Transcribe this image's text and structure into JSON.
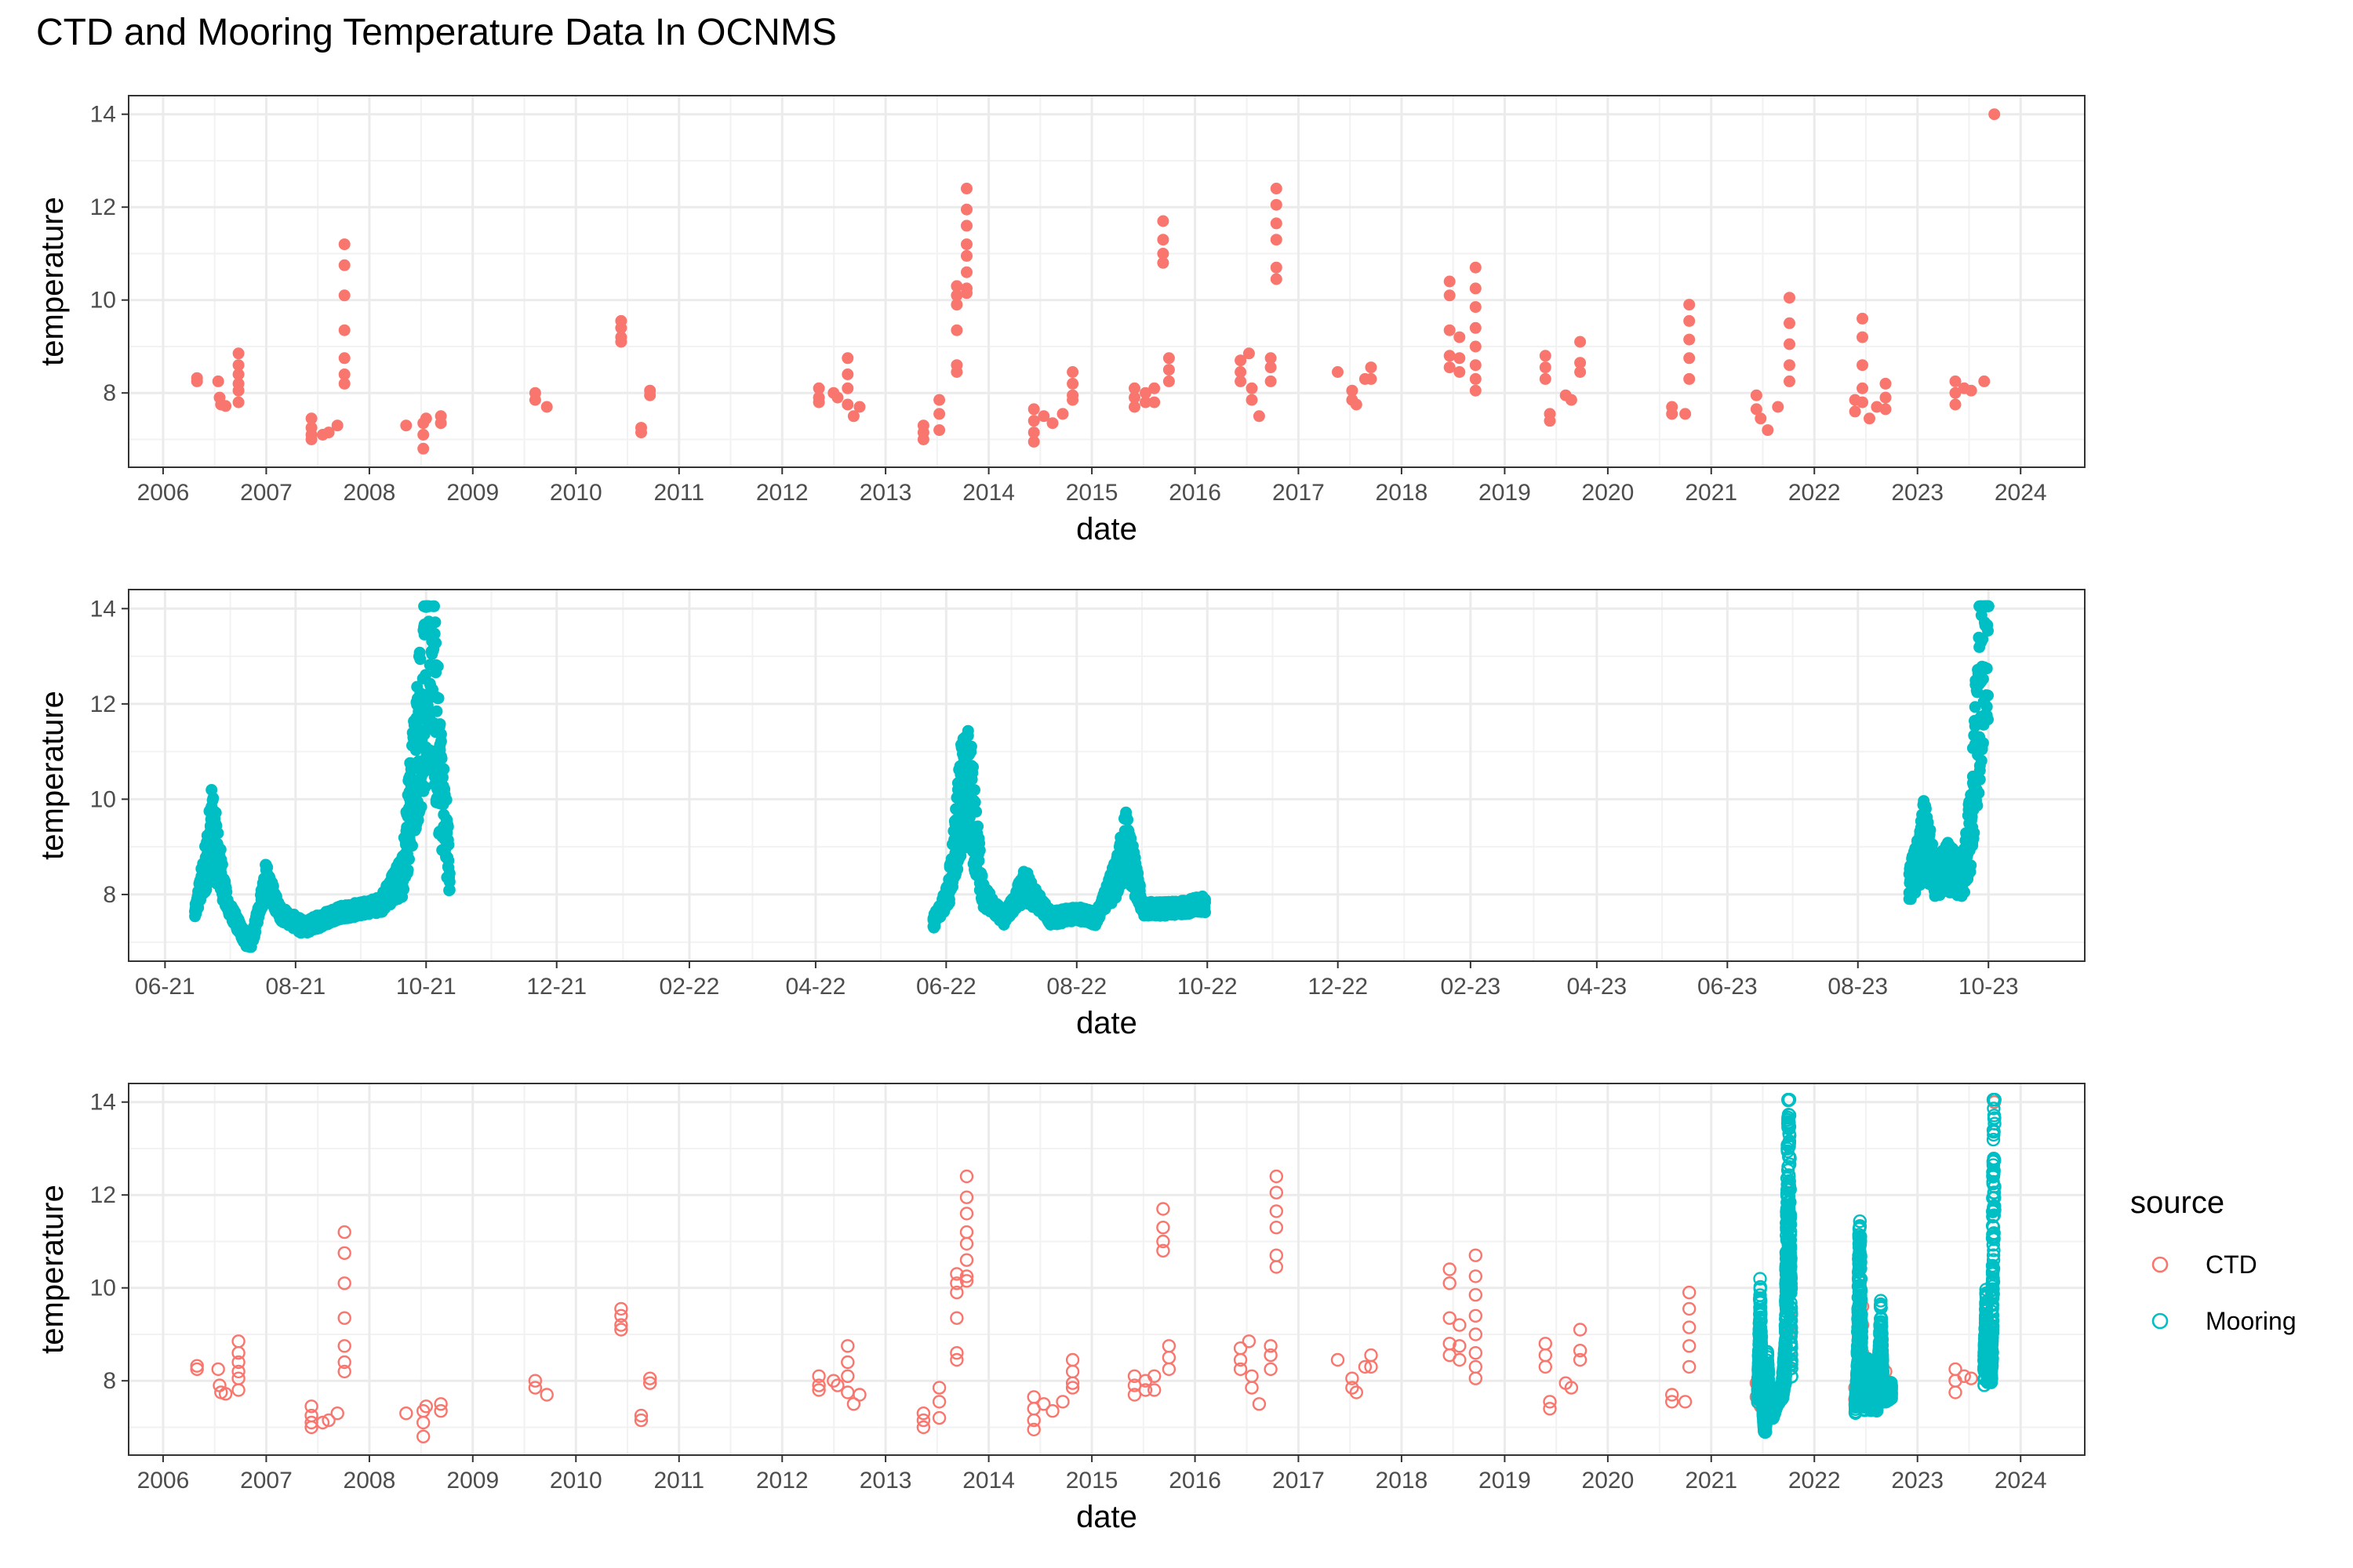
{
  "title": "CTD and Mooring Temperature Data In OCNMS",
  "colors": {
    "CTD": "#F8766D",
    "Mooring": "#00BFC4"
  },
  "legend": {
    "title": "source",
    "items": [
      "CTD",
      "Mooring"
    ]
  },
  "chart_data": [
    {
      "type": "scatter",
      "xlabel": "date",
      "ylabel": "temperature",
      "x_type": "date",
      "xlim": [
        "2005-09-01",
        "2024-08-15"
      ],
      "ylim": [
        6.4,
        14.4
      ],
      "y_ticks": [
        8,
        10,
        12,
        14
      ],
      "x_tick_labels": [
        "2006",
        "2007",
        "2008",
        "2009",
        "2010",
        "2011",
        "2012",
        "2013",
        "2014",
        "2015",
        "2016",
        "2017",
        "2018",
        "2019",
        "2020",
        "2021",
        "2022",
        "2023",
        "2024"
      ],
      "grid": true,
      "series": [
        {
          "name": "CTD",
          "marker": "filled-circle",
          "points": []
        }
      ]
    },
    {
      "type": "scatter",
      "xlabel": "date",
      "ylabel": "temperature",
      "x_type": "date",
      "xlim": [
        "2021-05-15",
        "2023-11-15"
      ],
      "ylim": [
        6.6,
        14.4
      ],
      "y_ticks": [
        8,
        10,
        12,
        14
      ],
      "x_tick_labels": [
        "06-21",
        "08-21",
        "10-21",
        "12-21",
        "02-22",
        "04-22",
        "06-22",
        "08-22",
        "10-22",
        "12-22",
        "02-23",
        "04-23",
        "06-23",
        "08-23",
        "10-23"
      ],
      "grid": true,
      "series": [
        {
          "name": "Mooring",
          "marker": "filled-circle",
          "points": []
        }
      ]
    },
    {
      "type": "scatter",
      "xlabel": "date",
      "ylabel": "temperature",
      "x_type": "date",
      "xlim": [
        "2005-09-01",
        "2024-08-15"
      ],
      "ylim": [
        6.4,
        14.4
      ],
      "y_ticks": [
        8,
        10,
        12,
        14
      ],
      "x_tick_labels": [
        "2006",
        "2007",
        "2008",
        "2009",
        "2010",
        "2011",
        "2012",
        "2013",
        "2014",
        "2015",
        "2016",
        "2017",
        "2018",
        "2019",
        "2020",
        "2021",
        "2022",
        "2023",
        "2024"
      ],
      "grid": true,
      "series": [
        {
          "name": "CTD",
          "marker": "open-circle",
          "points": []
        },
        {
          "name": "Mooring",
          "marker": "open-circle",
          "points": []
        }
      ]
    }
  ],
  "ctd_points": [
    [
      "2006-05-01",
      8.32
    ],
    [
      "2006-05-01",
      8.25
    ],
    [
      "2006-07-15",
      8.25
    ],
    [
      "2006-07-20",
      7.9
    ],
    [
      "2006-07-25",
      7.75
    ],
    [
      "2006-08-10",
      7.72
    ],
    [
      "2006-09-25",
      8.85
    ],
    [
      "2006-09-25",
      8.6
    ],
    [
      "2006-09-25",
      8.4
    ],
    [
      "2006-09-25",
      8.2
    ],
    [
      "2006-09-25",
      8.05
    ],
    [
      "2006-09-25",
      7.8
    ],
    [
      "2007-06-10",
      7.45
    ],
    [
      "2007-06-10",
      7.25
    ],
    [
      "2007-06-10",
      7.1
    ],
    [
      "2007-06-10",
      7.0
    ],
    [
      "2007-07-20",
      7.1
    ],
    [
      "2007-08-10",
      7.15
    ],
    [
      "2007-09-10",
      7.3
    ],
    [
      "2007-10-05",
      11.2
    ],
    [
      "2007-10-05",
      10.75
    ],
    [
      "2007-10-05",
      10.1
    ],
    [
      "2007-10-05",
      9.35
    ],
    [
      "2007-10-05",
      8.75
    ],
    [
      "2007-10-05",
      8.4
    ],
    [
      "2007-10-05",
      8.2
    ],
    [
      "2008-05-10",
      7.3
    ],
    [
      "2008-07-10",
      7.35
    ],
    [
      "2008-07-10",
      7.1
    ],
    [
      "2008-07-10",
      6.8
    ],
    [
      "2008-07-20",
      7.45
    ],
    [
      "2008-09-10",
      7.5
    ],
    [
      "2008-09-10",
      7.35
    ],
    [
      "2009-08-10",
      8.0
    ],
    [
      "2009-08-10",
      7.85
    ],
    [
      "2009-09-20",
      7.7
    ],
    [
      "2010-06-10",
      9.55
    ],
    [
      "2010-06-10",
      9.4
    ],
    [
      "2010-06-10",
      9.2
    ],
    [
      "2010-06-10",
      9.1
    ],
    [
      "2010-08-20",
      7.25
    ],
    [
      "2010-08-20",
      7.15
    ],
    [
      "2010-09-20",
      8.05
    ],
    [
      "2010-09-20",
      7.95
    ],
    [
      "2012-05-10",
      8.1
    ],
    [
      "2012-05-10",
      7.9
    ],
    [
      "2012-05-10",
      7.8
    ],
    [
      "2012-07-01",
      8.0
    ],
    [
      "2012-07-15",
      7.9
    ],
    [
      "2012-08-20",
      8.75
    ],
    [
      "2012-08-20",
      8.4
    ],
    [
      "2012-08-20",
      8.1
    ],
    [
      "2012-08-20",
      7.75
    ],
    [
      "2012-09-10",
      7.5
    ],
    [
      "2012-10-01",
      7.7
    ],
    [
      "2013-05-15",
      7.3
    ],
    [
      "2013-05-15",
      7.15
    ],
    [
      "2013-05-15",
      7.0
    ],
    [
      "2013-07-10",
      7.85
    ],
    [
      "2013-07-10",
      7.55
    ],
    [
      "2013-07-10",
      7.2
    ],
    [
      "2013-09-10",
      10.3
    ],
    [
      "2013-09-10",
      10.1
    ],
    [
      "2013-09-10",
      9.9
    ],
    [
      "2013-09-10",
      9.35
    ],
    [
      "2013-09-10",
      8.6
    ],
    [
      "2013-09-10",
      8.45
    ],
    [
      "2013-10-15",
      12.4
    ],
    [
      "2013-10-15",
      11.95
    ],
    [
      "2013-10-15",
      11.6
    ],
    [
      "2013-10-15",
      11.2
    ],
    [
      "2013-10-15",
      10.95
    ],
    [
      "2013-10-15",
      10.6
    ],
    [
      "2013-10-15",
      10.25
    ],
    [
      "2013-10-15",
      10.15
    ],
    [
      "2014-06-10",
      7.65
    ],
    [
      "2014-06-10",
      7.4
    ],
    [
      "2014-06-10",
      7.15
    ],
    [
      "2014-06-10",
      6.95
    ],
    [
      "2014-07-15",
      7.5
    ],
    [
      "2014-08-15",
      7.35
    ],
    [
      "2014-09-20",
      7.55
    ],
    [
      "2014-10-25",
      8.45
    ],
    [
      "2014-10-25",
      8.2
    ],
    [
      "2014-10-25",
      7.95
    ],
    [
      "2014-10-25",
      7.85
    ],
    [
      "2015-06-01",
      8.1
    ],
    [
      "2015-06-01",
      7.9
    ],
    [
      "2015-06-01",
      7.7
    ],
    [
      "2015-07-10",
      8.0
    ],
    [
      "2015-07-10",
      7.8
    ],
    [
      "2015-08-10",
      8.1
    ],
    [
      "2015-08-10",
      7.8
    ],
    [
      "2015-09-10",
      11.7
    ],
    [
      "2015-09-10",
      11.3
    ],
    [
      "2015-09-10",
      11.0
    ],
    [
      "2015-09-10",
      10.8
    ],
    [
      "2015-10-01",
      8.75
    ],
    [
      "2015-10-01",
      8.5
    ],
    [
      "2015-10-01",
      8.25
    ],
    [
      "2016-06-10",
      8.7
    ],
    [
      "2016-06-10",
      8.45
    ],
    [
      "2016-06-10",
      8.25
    ],
    [
      "2016-07-10",
      8.85
    ],
    [
      "2016-07-20",
      8.1
    ],
    [
      "2016-07-20",
      7.85
    ],
    [
      "2016-08-15",
      7.5
    ],
    [
      "2016-09-25",
      8.75
    ],
    [
      "2016-09-25",
      8.55
    ],
    [
      "2016-09-25",
      8.25
    ],
    [
      "2016-10-15",
      12.4
    ],
    [
      "2016-10-15",
      12.05
    ],
    [
      "2016-10-15",
      11.65
    ],
    [
      "2016-10-15",
      11.3
    ],
    [
      "2016-10-15",
      10.7
    ],
    [
      "2016-10-15",
      10.45
    ],
    [
      "2017-05-20",
      8.45
    ],
    [
      "2017-07-10",
      8.05
    ],
    [
      "2017-07-10",
      7.85
    ],
    [
      "2017-07-25",
      7.75
    ],
    [
      "2017-08-25",
      8.3
    ],
    [
      "2017-09-15",
      8.55
    ],
    [
      "2017-09-15",
      8.3
    ],
    [
      "2018-06-20",
      10.4
    ],
    [
      "2018-06-20",
      10.1
    ],
    [
      "2018-06-20",
      9.35
    ],
    [
      "2018-06-20",
      8.8
    ],
    [
      "2018-06-20",
      8.55
    ],
    [
      "2018-07-25",
      9.2
    ],
    [
      "2018-07-25",
      8.75
    ],
    [
      "2018-07-25",
      8.45
    ],
    [
      "2018-09-20",
      10.7
    ],
    [
      "2018-09-20",
      10.25
    ],
    [
      "2018-09-20",
      9.85
    ],
    [
      "2018-09-20",
      9.4
    ],
    [
      "2018-09-20",
      9.0
    ],
    [
      "2018-09-20",
      8.6
    ],
    [
      "2018-09-20",
      8.3
    ],
    [
      "2018-09-20",
      8.05
    ],
    [
      "2019-05-25",
      8.8
    ],
    [
      "2019-05-25",
      8.55
    ],
    [
      "2019-05-25",
      8.3
    ],
    [
      "2019-06-10",
      7.55
    ],
    [
      "2019-06-10",
      7.4
    ],
    [
      "2019-08-05",
      7.95
    ],
    [
      "2019-08-25",
      7.85
    ],
    [
      "2019-09-25",
      9.1
    ],
    [
      "2019-09-25",
      8.65
    ],
    [
      "2019-09-25",
      8.45
    ],
    [
      "2020-08-15",
      7.7
    ],
    [
      "2020-08-15",
      7.55
    ],
    [
      "2020-10-01",
      7.55
    ],
    [
      "2020-10-15",
      9.9
    ],
    [
      "2020-10-15",
      9.55
    ],
    [
      "2020-10-15",
      9.15
    ],
    [
      "2020-10-15",
      8.75
    ],
    [
      "2020-10-15",
      8.3
    ],
    [
      "2021-06-10",
      7.95
    ],
    [
      "2021-06-10",
      7.65
    ],
    [
      "2021-06-25",
      7.45
    ],
    [
      "2021-07-20",
      7.2
    ],
    [
      "2021-08-25",
      7.7
    ],
    [
      "2021-10-05",
      10.05
    ],
    [
      "2021-10-05",
      9.5
    ],
    [
      "2021-10-05",
      9.05
    ],
    [
      "2021-10-05",
      8.6
    ],
    [
      "2021-10-05",
      8.25
    ],
    [
      "2022-05-25",
      7.85
    ],
    [
      "2022-05-25",
      7.6
    ],
    [
      "2022-06-20",
      9.6
    ],
    [
      "2022-06-20",
      9.2
    ],
    [
      "2022-06-20",
      8.6
    ],
    [
      "2022-06-20",
      8.1
    ],
    [
      "2022-06-20",
      7.8
    ],
    [
      "2022-07-15",
      7.45
    ],
    [
      "2022-08-10",
      7.7
    ],
    [
      "2022-09-10",
      8.2
    ],
    [
      "2022-09-10",
      7.9
    ],
    [
      "2022-09-10",
      7.65
    ],
    [
      "2023-05-15",
      8.25
    ],
    [
      "2023-05-15",
      8.0
    ],
    [
      "2023-05-15",
      7.75
    ],
    [
      "2023-06-15",
      8.1
    ],
    [
      "2023-07-10",
      8.05
    ],
    [
      "2023-08-25",
      8.25
    ],
    [
      "2023-09-30",
      14.0
    ]
  ],
  "mooring_segments": [
    {
      "start": "2021-06-15",
      "end": "2021-10-12",
      "anchors": [
        [
          "2021-06-15",
          7.6
        ],
        [
          "2021-06-20",
          8.6
        ],
        [
          "2021-06-23",
          9.4
        ],
        [
          "2021-06-30",
          7.8
        ],
        [
          "2021-07-07",
          7.2
        ],
        [
          "2021-07-11",
          6.9
        ],
        [
          "2021-07-18",
          8.3
        ],
        [
          "2021-07-25",
          7.6
        ],
        [
          "2021-08-05",
          7.3
        ],
        [
          "2021-08-20",
          7.6
        ],
        [
          "2021-09-01",
          7.7
        ],
        [
          "2021-09-10",
          7.8
        ],
        [
          "2021-09-20",
          8.4
        ],
        [
          "2021-09-26",
          10.8
        ],
        [
          "2021-10-01",
          12.5
        ],
        [
          "2021-10-04",
          12.7
        ],
        [
          "2021-10-07",
          10.8
        ],
        [
          "2021-10-12",
          8.5
        ]
      ]
    },
    {
      "start": "2022-05-26",
      "end": "2022-09-30",
      "anchors": [
        [
          "2022-05-26",
          7.4
        ],
        [
          "2022-06-02",
          8.0
        ],
        [
          "2022-06-08",
          10.0
        ],
        [
          "2022-06-12",
          10.3
        ],
        [
          "2022-06-18",
          8.0
        ],
        [
          "2022-06-28",
          7.5
        ],
        [
          "2022-07-08",
          8.2
        ],
        [
          "2022-07-20",
          7.5
        ],
        [
          "2022-08-01",
          7.6
        ],
        [
          "2022-08-10",
          7.5
        ],
        [
          "2022-08-20",
          8.4
        ],
        [
          "2022-08-24",
          9.1
        ],
        [
          "2022-09-01",
          7.7
        ],
        [
          "2022-09-15",
          7.7
        ],
        [
          "2022-09-30",
          7.8
        ]
      ]
    },
    {
      "start": "2023-08-25",
      "end": "2023-10-01",
      "anchors": [
        [
          "2023-08-25",
          8.2
        ],
        [
          "2023-08-30",
          8.8
        ],
        [
          "2023-09-01",
          9.3
        ],
        [
          "2023-09-06",
          8.3
        ],
        [
          "2023-09-12",
          8.6
        ],
        [
          "2023-09-19",
          8.3
        ],
        [
          "2023-09-23",
          9.5
        ],
        [
          "2023-09-27",
          12.5
        ],
        [
          "2023-10-01",
          14.0
        ]
      ]
    }
  ]
}
